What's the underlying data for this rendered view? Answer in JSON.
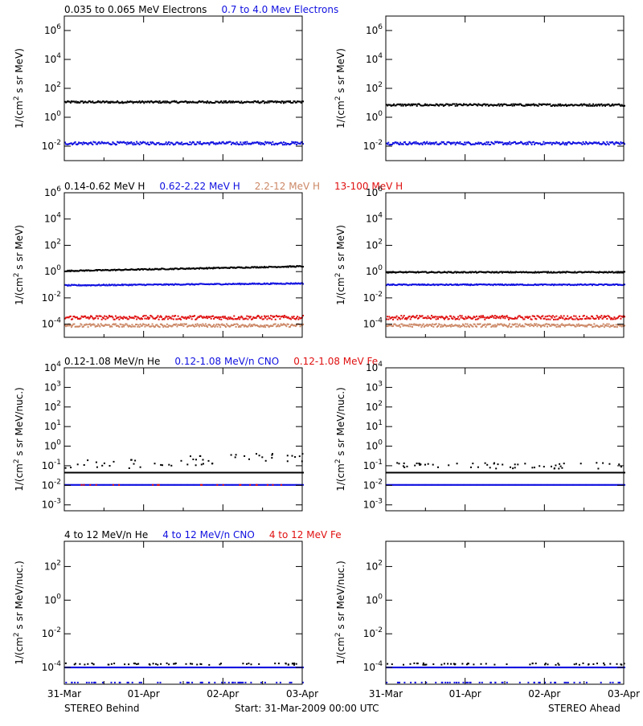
{
  "colors": {
    "black": "#000000",
    "blue": "#1010e0",
    "tan": "#cc8866",
    "red": "#e01010"
  },
  "footer": {
    "left": "STEREO Behind",
    "center": "Start: 31-Mar-2009 00:00 UTC",
    "right": "STEREO Ahead"
  },
  "x_ticks": [
    "31-Mar",
    "01-Apr",
    "02-Apr",
    "03-Apr"
  ],
  "chart_data": [
    {
      "type": "scatter",
      "row": 1,
      "spacecraft": "STEREO Behind",
      "legend": [
        {
          "text": "0.035 to 0.065 MeV Electrons",
          "color": "#000000"
        },
        {
          "text": "0.7 to 4.0 Mev Electrons",
          "color": "#1010e0"
        }
      ],
      "ylabel": "1/(cm2 s sr MeV)",
      "yscale": "log",
      "ylim_exp": [
        -3,
        7
      ],
      "y_ticks": [
        "10^6",
        "10^4",
        "10^2",
        "10^0",
        "10^-2"
      ],
      "xlim_days": [
        0,
        3
      ],
      "series": [
        {
          "name": "0.035 to 0.065 MeV Electrons",
          "color": "#000000",
          "log_level": 1.05,
          "log_jitter": 0.07
        },
        {
          "name": "0.7 to 4.0 Mev Electrons",
          "color": "#1010e0",
          "log_level": -1.8,
          "log_jitter": 0.1
        }
      ]
    },
    {
      "type": "scatter",
      "row": 1,
      "spacecraft": "STEREO Ahead",
      "legend": [],
      "ylabel": "1/(cm2 s sr MeV)",
      "yscale": "log",
      "ylim_exp": [
        -3,
        7
      ],
      "y_ticks": [
        "10^6",
        "10^4",
        "10^2",
        "10^0",
        "10^-2"
      ],
      "xlim_days": [
        0,
        3
      ],
      "series": [
        {
          "color": "#000000",
          "log_level": 0.85,
          "log_jitter": 0.07
        },
        {
          "color": "#1010e0",
          "log_level": -1.8,
          "log_jitter": 0.1
        }
      ]
    },
    {
      "type": "scatter",
      "row": 2,
      "spacecraft": "STEREO Behind",
      "legend": [
        {
          "text": "0.14-0.62 MeV H",
          "color": "#000000"
        },
        {
          "text": "0.62-2.22 MeV H",
          "color": "#1010e0"
        },
        {
          "text": "2.2-12 MeV H",
          "color": "#cc8866"
        },
        {
          "text": "13-100 MeV H",
          "color": "#e01010"
        }
      ],
      "ylabel": "1/(cm2 s sr MeV)",
      "yscale": "log",
      "ylim_exp": [
        -5,
        6
      ],
      "y_ticks": [
        "10^6",
        "10^4",
        "10^2",
        "10^0",
        "10^-2",
        "10^-4"
      ],
      "xlim_days": [
        0,
        3
      ],
      "series": [
        {
          "name": "0.14-0.62 MeV H",
          "color": "#000000",
          "log_level": 0.05,
          "log_level_end": 0.4,
          "log_jitter": 0.04
        },
        {
          "name": "0.62-2.22 MeV H",
          "color": "#1010e0",
          "log_level": -1.05,
          "log_level_end": -0.9,
          "log_jitter": 0.04
        },
        {
          "name": "2.2-12 MeV H",
          "color": "#cc8866",
          "log_level": -4.1,
          "log_jitter": 0.12
        },
        {
          "name": "13-100 MeV H",
          "color": "#e01010",
          "log_level": -3.5,
          "log_jitter": 0.15
        }
      ]
    },
    {
      "type": "scatter",
      "row": 2,
      "spacecraft": "STEREO Ahead",
      "legend": [],
      "ylabel": "1/(cm2 s sr MeV)",
      "yscale": "log",
      "ylim_exp": [
        -5,
        6
      ],
      "y_ticks": [
        "10^6",
        "10^4",
        "10^2",
        "10^0",
        "10^-2",
        "10^-4"
      ],
      "xlim_days": [
        0,
        3
      ],
      "series": [
        {
          "color": "#000000",
          "log_level": -0.05,
          "log_jitter": 0.04
        },
        {
          "color": "#1010e0",
          "log_level": -1.0,
          "log_jitter": 0.04
        },
        {
          "color": "#cc8866",
          "log_level": -4.1,
          "log_jitter": 0.12
        },
        {
          "color": "#e01010",
          "log_level": -3.5,
          "log_jitter": 0.15
        }
      ]
    },
    {
      "type": "scatter",
      "row": 3,
      "spacecraft": "STEREO Behind",
      "legend": [
        {
          "text": "0.12-1.08 MeV/n He",
          "color": "#000000"
        },
        {
          "text": "0.12-1.08 MeV/n CNO",
          "color": "#1010e0"
        },
        {
          "text": "0.12-1.08 MeV Fe",
          "color": "#e01010"
        }
      ],
      "ylabel": "1/(cm2 s sr MeV/nuc.)",
      "yscale": "log",
      "ylim_exp": [
        -3.3,
        4
      ],
      "y_ticks": [
        "10^4",
        "10^3",
        "10^2",
        "10^1",
        "10^0",
        "10^-1",
        "10^-2",
        "10^-3"
      ],
      "xlim_days": [
        0,
        3
      ],
      "series": [
        {
          "name": "0.12-1.08 MeV/n He",
          "color": "#000000",
          "log_level": -1.35,
          "log_jitter": 0.0
        },
        {
          "name": "0.12-1.08 MeV/n He (upper)",
          "color": "#000000",
          "log_level": -1.0,
          "log_level_end": -0.55,
          "log_jitter": 0.25,
          "sparse": true
        },
        {
          "name": "0.12-1.08 MeV/n CNO",
          "color": "#1010e0",
          "log_level": -1.98,
          "log_jitter": 0.0
        },
        {
          "name": "0.12-1.08 MeV Fe",
          "color": "#e01010",
          "log_level": -1.98,
          "log_jitter": 0.0,
          "sparse": true
        }
      ]
    },
    {
      "type": "scatter",
      "row": 3,
      "spacecraft": "STEREO Ahead",
      "legend": [],
      "ylabel": "1/(cm2 s sr MeV/nuc.)",
      "yscale": "log",
      "ylim_exp": [
        -3.3,
        4
      ],
      "y_ticks": [
        "10^4",
        "10^3",
        "10^2",
        "10^1",
        "10^0",
        "10^-1",
        "10^-2",
        "10^-3"
      ],
      "xlim_days": [
        0,
        3
      ],
      "series": [
        {
          "color": "#000000",
          "log_level": -1.35,
          "log_jitter": 0.0
        },
        {
          "color": "#000000",
          "log_level": -1.0,
          "log_jitter": 0.15,
          "sparse": true
        },
        {
          "color": "#1010e0",
          "log_level": -1.98,
          "log_jitter": 0.0
        }
      ]
    },
    {
      "type": "scatter",
      "row": 4,
      "spacecraft": "STEREO Behind",
      "legend": [
        {
          "text": "4 to 12 MeV/n He",
          "color": "#000000"
        },
        {
          "text": "4 to 12 MeV/n CNO",
          "color": "#1010e0"
        },
        {
          "text": "4 to 12 MeV Fe",
          "color": "#e01010"
        }
      ],
      "ylabel": "1/(cm2 s sr MeV/nuc.)",
      "yscale": "log",
      "ylim_exp": [
        -5,
        3.5
      ],
      "y_ticks": [
        "10^2",
        "10^0",
        "10^-2",
        "10^-4"
      ],
      "xlim_days": [
        0,
        3
      ],
      "series": [
        {
          "name": "4 to 12 MeV/n CNO",
          "color": "#1010e0",
          "log_level": -4.0,
          "log_jitter": 0.0
        },
        {
          "name": "4 to 12 MeV/n He",
          "color": "#000000",
          "log_level": -3.8,
          "log_jitter": 0.05,
          "sparse": true
        },
        {
          "name": "4 to 12 MeV/n CNO (low)",
          "color": "#1010e0",
          "log_level": -4.9,
          "log_jitter": 0.0,
          "sparse": true
        }
      ]
    },
    {
      "type": "scatter",
      "row": 4,
      "spacecraft": "STEREO Ahead",
      "legend": [],
      "ylabel": "1/(cm2 s sr MeV/nuc.)",
      "yscale": "log",
      "ylim_exp": [
        -5,
        3.5
      ],
      "y_ticks": [
        "10^2",
        "10^0",
        "10^-2",
        "10^-4"
      ],
      "xlim_days": [
        0,
        3
      ],
      "series": [
        {
          "color": "#1010e0",
          "log_level": -4.0,
          "log_jitter": 0.0
        },
        {
          "color": "#000000",
          "log_level": -3.8,
          "log_jitter": 0.05,
          "sparse": true
        },
        {
          "color": "#1010e0",
          "log_level": -4.9,
          "log_jitter": 0.0,
          "sparse": true
        }
      ]
    }
  ]
}
